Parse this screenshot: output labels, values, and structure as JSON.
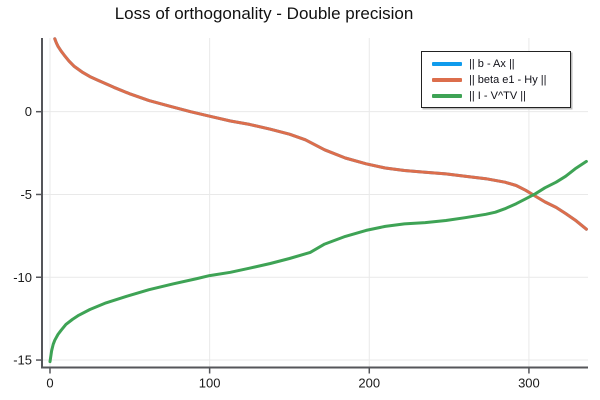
{
  "title": "Loss of orthogonality - Double precision",
  "background_color": "#ffffff",
  "chart_data": {
    "type": "line",
    "title": "Loss of orthogonality - Double precision",
    "xlabel": "",
    "ylabel": "",
    "grid": true,
    "grid_color": "#e9e9e9",
    "axis_color": "#55565a",
    "tick_label_color": "#1a1a1a",
    "legend_position": "top-right-inside",
    "x_ticks": [
      0,
      100,
      200,
      300
    ],
    "y_ticks": [
      0,
      -5,
      -10,
      -15
    ],
    "x_range": [
      -5,
      337
    ],
    "y_range": [
      -15.45,
      4.45
    ],
    "series": [
      {
        "name": "|| b - Ax ||",
        "color": "#109BEC",
        "points": [
          [
            3,
            4.4
          ],
          [
            4,
            4.15
          ],
          [
            5,
            3.95
          ],
          [
            7,
            3.65
          ],
          [
            9,
            3.4
          ],
          [
            12,
            3.05
          ],
          [
            15,
            2.75
          ],
          [
            20,
            2.4
          ],
          [
            25,
            2.12
          ],
          [
            30,
            1.9
          ],
          [
            40,
            1.47
          ],
          [
            50,
            1.08
          ],
          [
            62,
            0.67
          ],
          [
            75,
            0.33
          ],
          [
            88,
            0.0
          ],
          [
            100,
            -0.27
          ],
          [
            113,
            -0.56
          ],
          [
            125,
            -0.77
          ],
          [
            138,
            -1.06
          ],
          [
            150,
            -1.36
          ],
          [
            160,
            -1.7
          ],
          [
            172,
            -2.3
          ],
          [
            185,
            -2.8
          ],
          [
            198,
            -3.15
          ],
          [
            210,
            -3.4
          ],
          [
            222,
            -3.55
          ],
          [
            235,
            -3.66
          ],
          [
            248,
            -3.76
          ],
          [
            260,
            -3.9
          ],
          [
            273,
            -4.05
          ],
          [
            285,
            -4.26
          ],
          [
            292,
            -4.46
          ],
          [
            298,
            -4.75
          ],
          [
            304,
            -5.1
          ],
          [
            310,
            -5.45
          ],
          [
            317,
            -5.78
          ],
          [
            323,
            -6.15
          ],
          [
            329,
            -6.55
          ],
          [
            336,
            -7.1
          ]
        ]
      },
      {
        "name": "|| beta e1 - Hy ||",
        "color": "#DC6E4C",
        "points": [
          [
            3,
            4.4
          ],
          [
            4,
            4.15
          ],
          [
            5,
            3.95
          ],
          [
            7,
            3.65
          ],
          [
            9,
            3.4
          ],
          [
            12,
            3.05
          ],
          [
            15,
            2.75
          ],
          [
            20,
            2.4
          ],
          [
            25,
            2.12
          ],
          [
            30,
            1.9
          ],
          [
            40,
            1.47
          ],
          [
            50,
            1.08
          ],
          [
            62,
            0.67
          ],
          [
            75,
            0.33
          ],
          [
            88,
            0.0
          ],
          [
            100,
            -0.27
          ],
          [
            113,
            -0.56
          ],
          [
            125,
            -0.77
          ],
          [
            138,
            -1.06
          ],
          [
            150,
            -1.36
          ],
          [
            160,
            -1.7
          ],
          [
            172,
            -2.3
          ],
          [
            185,
            -2.8
          ],
          [
            198,
            -3.15
          ],
          [
            210,
            -3.4
          ],
          [
            222,
            -3.55
          ],
          [
            235,
            -3.66
          ],
          [
            248,
            -3.76
          ],
          [
            260,
            -3.9
          ],
          [
            273,
            -4.05
          ],
          [
            285,
            -4.26
          ],
          [
            292,
            -4.46
          ],
          [
            298,
            -4.75
          ],
          [
            304,
            -5.1
          ],
          [
            310,
            -5.45
          ],
          [
            317,
            -5.78
          ],
          [
            323,
            -6.15
          ],
          [
            329,
            -6.55
          ],
          [
            336,
            -7.1
          ]
        ]
      },
      {
        "name": "|| I - V^TV ||",
        "color": "#3EA355",
        "points": [
          [
            0,
            -15.1
          ],
          [
            1,
            -14.45
          ],
          [
            2,
            -14.05
          ],
          [
            3,
            -13.8
          ],
          [
            5,
            -13.45
          ],
          [
            7,
            -13.2
          ],
          [
            10,
            -12.85
          ],
          [
            14,
            -12.55
          ],
          [
            18,
            -12.3
          ],
          [
            25,
            -11.95
          ],
          [
            35,
            -11.55
          ],
          [
            48,
            -11.15
          ],
          [
            62,
            -10.75
          ],
          [
            77,
            -10.4
          ],
          [
            92,
            -10.08
          ],
          [
            100,
            -9.9
          ],
          [
            113,
            -9.7
          ],
          [
            125,
            -9.45
          ],
          [
            138,
            -9.17
          ],
          [
            150,
            -8.87
          ],
          [
            163,
            -8.5
          ],
          [
            172,
            -8.0
          ],
          [
            185,
            -7.53
          ],
          [
            198,
            -7.17
          ],
          [
            210,
            -6.93
          ],
          [
            222,
            -6.78
          ],
          [
            235,
            -6.7
          ],
          [
            248,
            -6.57
          ],
          [
            260,
            -6.4
          ],
          [
            273,
            -6.2
          ],
          [
            279,
            -6.07
          ],
          [
            285,
            -5.86
          ],
          [
            292,
            -5.56
          ],
          [
            298,
            -5.26
          ],
          [
            304,
            -4.96
          ],
          [
            310,
            -4.6
          ],
          [
            317,
            -4.26
          ],
          [
            323,
            -3.9
          ],
          [
            329,
            -3.45
          ],
          [
            336,
            -3.0
          ]
        ]
      }
    ]
  }
}
